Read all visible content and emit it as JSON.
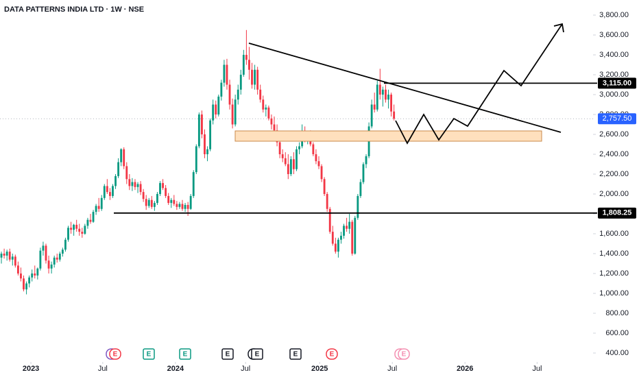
{
  "chart_data": {
    "type": "candlestick",
    "title": "DATA PATTERNS INDIA LTD · 1W · NSE",
    "up_color": "#089981",
    "down_color": "#f23645",
    "xlim": [
      0,
      213
    ],
    "xticks": [
      {
        "value": 11.1,
        "label": "2023"
      },
      {
        "value": 36.9,
        "label": "Jul"
      },
      {
        "value": 63,
        "label": "2024"
      },
      {
        "value": 88.2,
        "label": "Jul"
      },
      {
        "value": 114.8,
        "label": "2025"
      },
      {
        "value": 140.9,
        "label": "Jul"
      },
      {
        "value": 167,
        "label": "2026"
      },
      {
        "value": 192.9,
        "label": "Jul"
      }
    ],
    "ylim": [
      331,
      3952
    ],
    "yticks": [
      {
        "value": 400,
        "label": "400.00"
      },
      {
        "value": 600,
        "label": "600.00"
      },
      {
        "value": 800,
        "label": "800.00"
      },
      {
        "value": 1000,
        "label": "1,000.00"
      },
      {
        "value": 1200,
        "label": "1,200.00"
      },
      {
        "value": 1400,
        "label": "1,400.00"
      },
      {
        "value": 1600,
        "label": "1,600.00"
      },
      {
        "value": 1800,
        "label": "1,800.00"
      },
      {
        "value": 2000,
        "label": "2,000.00"
      },
      {
        "value": 2200,
        "label": "2,200.00"
      },
      {
        "value": 2400,
        "label": "2,400.00"
      },
      {
        "value": 2600,
        "label": "2,600.00"
      },
      {
        "value": 2800,
        "label": "2,800.00"
      },
      {
        "value": 3000,
        "label": "3,000.00"
      },
      {
        "value": 3200,
        "label": "3,200.00"
      },
      {
        "value": 3400,
        "label": "3,400.00"
      },
      {
        "value": 3600,
        "label": "3,600.00"
      },
      {
        "value": 3800,
        "label": "3,800.00"
      }
    ],
    "price_levels": [
      {
        "value": 3115,
        "label": "3,115.00"
      },
      {
        "value": 1808.25,
        "label": "1,808.25"
      }
    ],
    "last_price": {
      "value": 2757.5,
      "label": "2,757.50"
    },
    "earnings": [
      "E",
      "E",
      "E",
      "E",
      "E",
      "E",
      "E",
      "E"
    ],
    "ohlc": [
      [
        1360,
        1420,
        1300,
        1400
      ],
      [
        1400,
        1450,
        1350,
        1380
      ],
      [
        1380,
        1440,
        1330,
        1420
      ],
      [
        1420,
        1450,
        1320,
        1340
      ],
      [
        1340,
        1400,
        1280,
        1370
      ],
      [
        1370,
        1390,
        1260,
        1280
      ],
      [
        1280,
        1320,
        1180,
        1200
      ],
      [
        1200,
        1260,
        1120,
        1150
      ],
      [
        1150,
        1180,
        1020,
        1040
      ],
      [
        1040,
        1120,
        990,
        1100
      ],
      [
        1100,
        1180,
        1060,
        1160
      ],
      [
        1160,
        1240,
        1120,
        1200
      ],
      [
        1200,
        1280,
        1150,
        1180
      ],
      [
        1180,
        1260,
        1140,
        1250
      ],
      [
        1250,
        1460,
        1230,
        1430
      ],
      [
        1430,
        1520,
        1380,
        1480
      ],
      [
        1480,
        1500,
        1300,
        1330
      ],
      [
        1330,
        1380,
        1200,
        1250
      ],
      [
        1250,
        1320,
        1200,
        1290
      ],
      [
        1290,
        1380,
        1260,
        1360
      ],
      [
        1360,
        1400,
        1310,
        1340
      ],
      [
        1340,
        1420,
        1320,
        1400
      ],
      [
        1400,
        1460,
        1370,
        1440
      ],
      [
        1440,
        1560,
        1420,
        1540
      ],
      [
        1540,
        1680,
        1520,
        1660
      ],
      [
        1660,
        1720,
        1600,
        1640
      ],
      [
        1640,
        1700,
        1580,
        1690
      ],
      [
        1690,
        1740,
        1620,
        1650
      ],
      [
        1650,
        1700,
        1580,
        1620
      ],
      [
        1620,
        1660,
        1560,
        1600
      ],
      [
        1600,
        1700,
        1590,
        1680
      ],
      [
        1680,
        1760,
        1650,
        1740
      ],
      [
        1740,
        1800,
        1700,
        1720
      ],
      [
        1720,
        1840,
        1710,
        1820
      ],
      [
        1820,
        1900,
        1790,
        1880
      ],
      [
        1880,
        1960,
        1820,
        1850
      ],
      [
        1850,
        1990,
        1830,
        1960
      ],
      [
        1960,
        2100,
        1940,
        2080
      ],
      [
        2080,
        2150,
        2000,
        2020
      ],
      [
        2020,
        2060,
        1940,
        1980
      ],
      [
        1980,
        2100,
        1960,
        2080
      ],
      [
        2080,
        2200,
        2050,
        2180
      ],
      [
        2180,
        2360,
        2160,
        2320
      ],
      [
        2320,
        2460,
        2280,
        2450
      ],
      [
        2450,
        2470,
        2250,
        2280
      ],
      [
        2280,
        2320,
        2100,
        2150
      ],
      [
        2150,
        2200,
        2040,
        2080
      ],
      [
        2080,
        2160,
        2030,
        2120
      ],
      [
        2120,
        2150,
        2040,
        2070
      ],
      [
        2070,
        2120,
        2010,
        2100
      ],
      [
        2100,
        2130,
        1990,
        2020
      ],
      [
        2020,
        2050,
        1920,
        1950
      ],
      [
        1950,
        1990,
        1840,
        1880
      ],
      [
        1880,
        1960,
        1860,
        1940
      ],
      [
        1940,
        1980,
        1850,
        1870
      ],
      [
        1870,
        1930,
        1830,
        1910
      ],
      [
        1910,
        2020,
        1890,
        2000
      ],
      [
        2000,
        2130,
        1980,
        2110
      ],
      [
        2110,
        2150,
        2040,
        2060
      ],
      [
        2060,
        2090,
        1960,
        1980
      ],
      [
        1980,
        2010,
        1890,
        1910
      ],
      [
        1910,
        1960,
        1860,
        1940
      ],
      [
        1940,
        1990,
        1880,
        1900
      ],
      [
        1900,
        1930,
        1840,
        1870
      ],
      [
        1870,
        1920,
        1850,
        1900
      ],
      [
        1900,
        1940,
        1830,
        1850
      ],
      [
        1850,
        1910,
        1820,
        1890
      ],
      [
        1890,
        1920,
        1780,
        1850
      ],
      [
        1850,
        2000,
        1840,
        1980
      ],
      [
        1980,
        2240,
        1960,
        2220
      ],
      [
        2220,
        2500,
        2200,
        2480
      ],
      [
        2480,
        2820,
        2460,
        2800
      ],
      [
        2800,
        2840,
        2560,
        2600
      ],
      [
        2600,
        2650,
        2360,
        2400
      ],
      [
        2400,
        2480,
        2330,
        2450
      ],
      [
        2450,
        2760,
        2430,
        2740
      ],
      [
        2740,
        2950,
        2700,
        2900
      ],
      [
        2900,
        2940,
        2760,
        2800
      ],
      [
        2800,
        3000,
        2780,
        2980
      ],
      [
        2980,
        3150,
        2940,
        3120
      ],
      [
        3120,
        3350,
        3080,
        3300
      ],
      [
        3300,
        3360,
        3050,
        3100
      ],
      [
        3100,
        3150,
        2850,
        2900
      ],
      [
        2900,
        2960,
        2660,
        2700
      ],
      [
        2700,
        3000,
        2680,
        2950
      ],
      [
        2950,
        3100,
        2900,
        3050
      ],
      [
        3050,
        3250,
        3000,
        3200
      ],
      [
        3200,
        3450,
        3180,
        3400
      ],
      [
        3400,
        3650,
        3300,
        3350
      ],
      [
        3350,
        3480,
        3150,
        3250
      ],
      [
        3250,
        3320,
        3060,
        3100
      ],
      [
        3100,
        3300,
        3050,
        3250
      ],
      [
        3250,
        3280,
        3000,
        3050
      ],
      [
        3050,
        3100,
        2920,
        2950
      ],
      [
        2950,
        2990,
        2820,
        2850
      ],
      [
        2850,
        2900,
        2780,
        2870
      ],
      [
        2870,
        2890,
        2740,
        2760
      ],
      [
        2760,
        2800,
        2650,
        2700
      ],
      [
        2700,
        2780,
        2620,
        2640
      ],
      [
        2640,
        2700,
        2480,
        2520
      ],
      [
        2520,
        2560,
        2360,
        2400
      ],
      [
        2400,
        2450,
        2320,
        2360
      ],
      [
        2360,
        2420,
        2280,
        2300
      ],
      [
        2300,
        2400,
        2150,
        2200
      ],
      [
        2200,
        2380,
        2180,
        2350
      ],
      [
        2350,
        2420,
        2200,
        2250
      ],
      [
        2250,
        2480,
        2230,
        2450
      ],
      [
        2450,
        2520,
        2400,
        2480
      ],
      [
        2480,
        2700,
        2460,
        2620
      ],
      [
        2620,
        2680,
        2520,
        2560
      ],
      [
        2560,
        2620,
        2500,
        2590
      ],
      [
        2590,
        2640,
        2480,
        2500
      ],
      [
        2500,
        2520,
        2380,
        2400
      ],
      [
        2400,
        2450,
        2300,
        2330
      ],
      [
        2330,
        2380,
        2250,
        2280
      ],
      [
        2280,
        2300,
        2120,
        2150
      ],
      [
        2150,
        2170,
        1980,
        2000
      ],
      [
        2000,
        2020,
        1820,
        1850
      ],
      [
        1850,
        1870,
        1600,
        1620
      ],
      [
        1620,
        1680,
        1480,
        1500
      ],
      [
        1500,
        1560,
        1400,
        1420
      ],
      [
        1420,
        1560,
        1360,
        1540
      ],
      [
        1540,
        1620,
        1500,
        1580
      ],
      [
        1580,
        1700,
        1550,
        1680
      ],
      [
        1680,
        1760,
        1620,
        1650
      ],
      [
        1650,
        1800,
        1600,
        1720
      ],
      [
        1720,
        1740,
        1380,
        1400
      ],
      [
        1400,
        1780,
        1390,
        1760
      ],
      [
        1760,
        2000,
        1740,
        1980
      ],
      [
        1980,
        2150,
        1960,
        2120
      ],
      [
        2120,
        2320,
        2100,
        2300
      ],
      [
        2300,
        2400,
        2260,
        2380
      ],
      [
        2380,
        2720,
        2360,
        2680
      ],
      [
        2680,
        2950,
        2660,
        2900
      ],
      [
        2900,
        3020,
        2820,
        2850
      ],
      [
        2850,
        3140,
        2830,
        3100
      ],
      [
        3100,
        3260,
        2950,
        3000
      ],
      [
        3000,
        3080,
        2880,
        3050
      ],
      [
        3050,
        3100,
        2920,
        2950
      ],
      [
        2950,
        3050,
        2860,
        3000
      ],
      [
        3000,
        3020,
        2780,
        2830
      ],
      [
        2830,
        2900,
        2740,
        2757.5
      ]
    ]
  }
}
